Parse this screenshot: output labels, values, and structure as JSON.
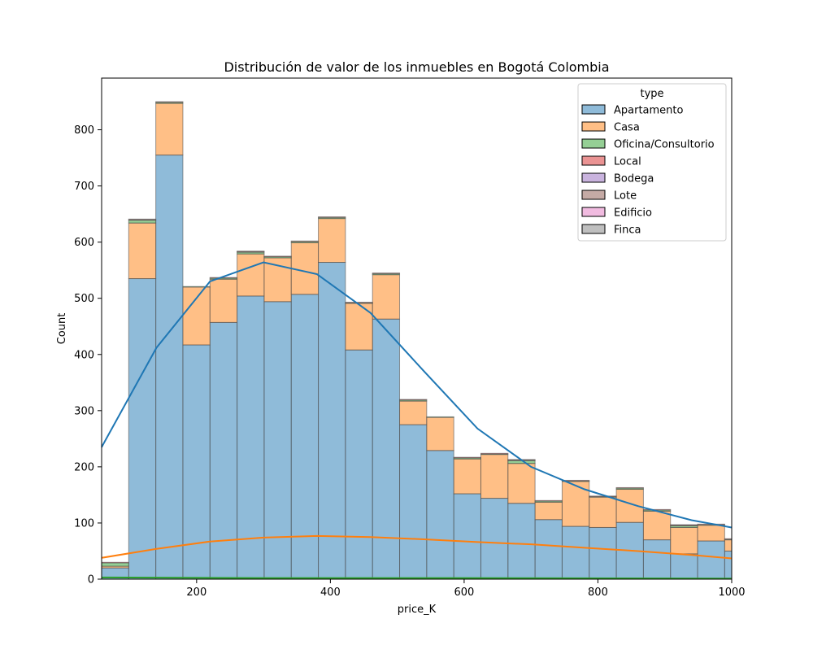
{
  "chart_data": {
    "type": "bar",
    "subtype": "stacked histogram with KDE lines",
    "title": "Distribución de valor de los inmuebles en Bogotá Colombia",
    "xlabel": "price_K",
    "ylabel": "Count",
    "xlim": [
      58,
      1000
    ],
    "ylim": [
      0,
      892
    ],
    "x_ticks": [
      200,
      400,
      600,
      800,
      1000
    ],
    "y_ticks": [
      0,
      100,
      200,
      300,
      400,
      500,
      600,
      700,
      800
    ],
    "grid": false,
    "legend": {
      "title": "type",
      "placement": "top-right"
    },
    "bin_edges": [
      58,
      98.5,
      139,
      179.5,
      220,
      260.5,
      301,
      341.5,
      382,
      422.5,
      463,
      503.5,
      544,
      584.5,
      625,
      665.5,
      706,
      746.5,
      787,
      827.5,
      868,
      908.5,
      949,
      989.5,
      1000
    ],
    "stack_totals": [
      30,
      641,
      850,
      521,
      537,
      584,
      575,
      602,
      645,
      493,
      545,
      320,
      289,
      217,
      224,
      213,
      140,
      176,
      148,
      163,
      124,
      97,
      98,
      72
    ],
    "series": [
      {
        "name": "Apartamento",
        "color": "#1f77b4",
        "values": [
          20,
          535,
          755,
          417,
          457,
          504,
          494,
          507,
          564,
          408,
          463,
          275,
          229,
          152,
          144,
          135,
          106,
          94,
          92,
          101,
          70,
          45,
          68,
          50
        ]
      },
      {
        "name": "Casa",
        "color": "#ff7f0e",
        "values": [
          3,
          99,
          92,
          103,
          77,
          75,
          78,
          92,
          78,
          83,
          79,
          42,
          59,
          62,
          78,
          71,
          31,
          80,
          54,
          59,
          51,
          47,
          28,
          20
        ]
      },
      {
        "name": "Oficina/Consultorio",
        "color": "#2ca02c",
        "values": [
          6,
          5,
          2,
          1,
          2,
          3,
          2,
          2,
          2,
          1,
          2,
          2,
          1,
          2,
          1,
          5,
          2,
          1,
          1,
          2,
          2,
          3,
          1,
          1
        ]
      },
      {
        "name": "Local",
        "color": "#d62728",
        "values": [
          1,
          1,
          1,
          0,
          1,
          1,
          1,
          1,
          1,
          1,
          1,
          1,
          0,
          1,
          1,
          1,
          1,
          1,
          1,
          1,
          1,
          1,
          1,
          1
        ]
      },
      {
        "name": "Bodega",
        "color": "#9467bd",
        "values": [
          0,
          0,
          0,
          0,
          0,
          0,
          0,
          0,
          0,
          0,
          0,
          0,
          0,
          0,
          0,
          0,
          0,
          0,
          0,
          0,
          0,
          0,
          0,
          0
        ]
      },
      {
        "name": "Lote",
        "color": "#8c564b",
        "values": [
          0,
          1,
          0,
          0,
          0,
          1,
          0,
          0,
          0,
          0,
          0,
          0,
          0,
          0,
          0,
          1,
          0,
          0,
          0,
          0,
          0,
          1,
          0,
          0
        ]
      },
      {
        "name": "Edificio",
        "color": "#e377c2",
        "values": [
          0,
          0,
          0,
          0,
          0,
          0,
          0,
          0,
          0,
          0,
          0,
          0,
          0,
          0,
          0,
          0,
          0,
          0,
          0,
          0,
          0,
          0,
          0,
          0
        ]
      },
      {
        "name": "Finca",
        "color": "#7f7f7f",
        "values": [
          0,
          0,
          0,
          0,
          0,
          0,
          0,
          0,
          0,
          0,
          0,
          0,
          0,
          0,
          0,
          0,
          0,
          0,
          0,
          0,
          0,
          0,
          0,
          0
        ]
      }
    ],
    "kde": [
      {
        "name": "Apartamento",
        "color": "#1f77b4",
        "x": [
          58,
          140,
          220,
          300,
          380,
          460,
          540,
          620,
          700,
          780,
          860,
          940,
          1000
        ],
        "y": [
          235,
          412,
          530,
          564,
          543,
          474,
          370,
          268,
          200,
          160,
          130,
          105,
          92
        ]
      },
      {
        "name": "Casa",
        "color": "#ff7f0e",
        "x": [
          58,
          140,
          220,
          300,
          380,
          460,
          540,
          620,
          700,
          780,
          860,
          940,
          1000
        ],
        "y": [
          38,
          54,
          67,
          74,
          77,
          75,
          71,
          66,
          62,
          56,
          50,
          43,
          37
        ]
      },
      {
        "name": "Oficina/Consultorio",
        "color": "#2ca02c",
        "x": [
          58,
          300,
          600,
          1000
        ],
        "y": [
          3,
          2,
          2,
          1
        ]
      }
    ]
  }
}
